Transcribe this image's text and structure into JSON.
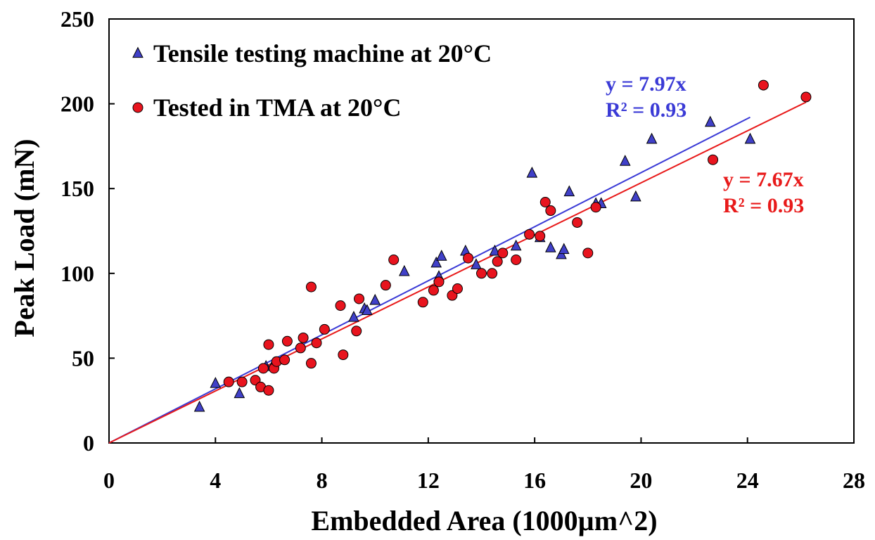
{
  "chart_data": {
    "type": "scatter",
    "title": "",
    "xlabel": "Embedded Area (1000µm^2)",
    "ylabel": "Peak Load (mN)",
    "xlim": [
      0,
      28
    ],
    "ylim": [
      0,
      250
    ],
    "xticks": [
      "0",
      "4",
      "8",
      "12",
      "16",
      "20",
      "24",
      "28"
    ],
    "yticks": [
      "0",
      "50",
      "100",
      "150",
      "200",
      "250"
    ],
    "grid": false,
    "legend_position": "top-left",
    "series": [
      {
        "name": "Tensile testing machine at 20°C",
        "marker": "triangle",
        "color": "#4040c8",
        "trendline": {
          "slope": 7.97,
          "x_end": 24.1,
          "equation": "y = 7.97x",
          "r2": "R² = 0.93",
          "color": "#3a3ad6"
        },
        "points": [
          [
            3.4,
            21
          ],
          [
            4.0,
            35
          ],
          [
            4.9,
            29
          ],
          [
            5.9,
            45
          ],
          [
            6.2,
            47
          ],
          [
            9.2,
            74
          ],
          [
            9.6,
            79
          ],
          [
            9.7,
            78
          ],
          [
            10.0,
            84
          ],
          [
            11.1,
            101
          ],
          [
            12.3,
            106
          ],
          [
            12.4,
            98
          ],
          [
            12.5,
            110
          ],
          [
            13.4,
            113
          ],
          [
            13.8,
            105
          ],
          [
            14.5,
            113
          ],
          [
            15.3,
            116
          ],
          [
            15.9,
            159
          ],
          [
            16.2,
            121
          ],
          [
            16.6,
            115
          ],
          [
            17.0,
            111
          ],
          [
            17.1,
            114
          ],
          [
            17.3,
            148
          ],
          [
            18.3,
            141
          ],
          [
            18.5,
            141
          ],
          [
            19.4,
            166
          ],
          [
            19.8,
            145
          ],
          [
            20.4,
            179
          ],
          [
            22.6,
            189
          ],
          [
            24.1,
            179
          ]
        ]
      },
      {
        "name": "Tested in TMA at 20°C",
        "marker": "circle",
        "color": "#e8141e",
        "trendline": {
          "slope": 7.67,
          "x_end": 26.2,
          "equation": "y = 7.67x",
          "r2": "R² = 0.93",
          "color": "#e81a1a"
        },
        "points": [
          [
            4.5,
            36
          ],
          [
            5.0,
            36
          ],
          [
            5.5,
            37
          ],
          [
            5.7,
            33
          ],
          [
            5.8,
            44
          ],
          [
            6.0,
            31
          ],
          [
            6.0,
            58
          ],
          [
            6.2,
            44
          ],
          [
            6.3,
            48
          ],
          [
            6.6,
            49
          ],
          [
            6.7,
            60
          ],
          [
            7.2,
            56
          ],
          [
            7.3,
            62
          ],
          [
            7.6,
            47
          ],
          [
            7.6,
            92
          ],
          [
            7.8,
            59
          ],
          [
            8.1,
            67
          ],
          [
            8.7,
            81
          ],
          [
            8.8,
            52
          ],
          [
            9.3,
            66
          ],
          [
            9.4,
            85
          ],
          [
            10.4,
            93
          ],
          [
            10.7,
            108
          ],
          [
            11.8,
            83
          ],
          [
            12.2,
            90
          ],
          [
            12.4,
            95
          ],
          [
            12.9,
            87
          ],
          [
            13.1,
            91
          ],
          [
            13.5,
            109
          ],
          [
            14.0,
            100
          ],
          [
            14.4,
            100
          ],
          [
            14.6,
            107
          ],
          [
            14.8,
            112
          ],
          [
            15.3,
            108
          ],
          [
            15.8,
            123
          ],
          [
            16.2,
            122
          ],
          [
            16.4,
            142
          ],
          [
            16.6,
            137
          ],
          [
            17.6,
            130
          ],
          [
            18.0,
            112
          ],
          [
            18.3,
            139
          ],
          [
            22.7,
            167
          ],
          [
            24.6,
            211
          ],
          [
            26.2,
            204
          ]
        ]
      }
    ]
  }
}
